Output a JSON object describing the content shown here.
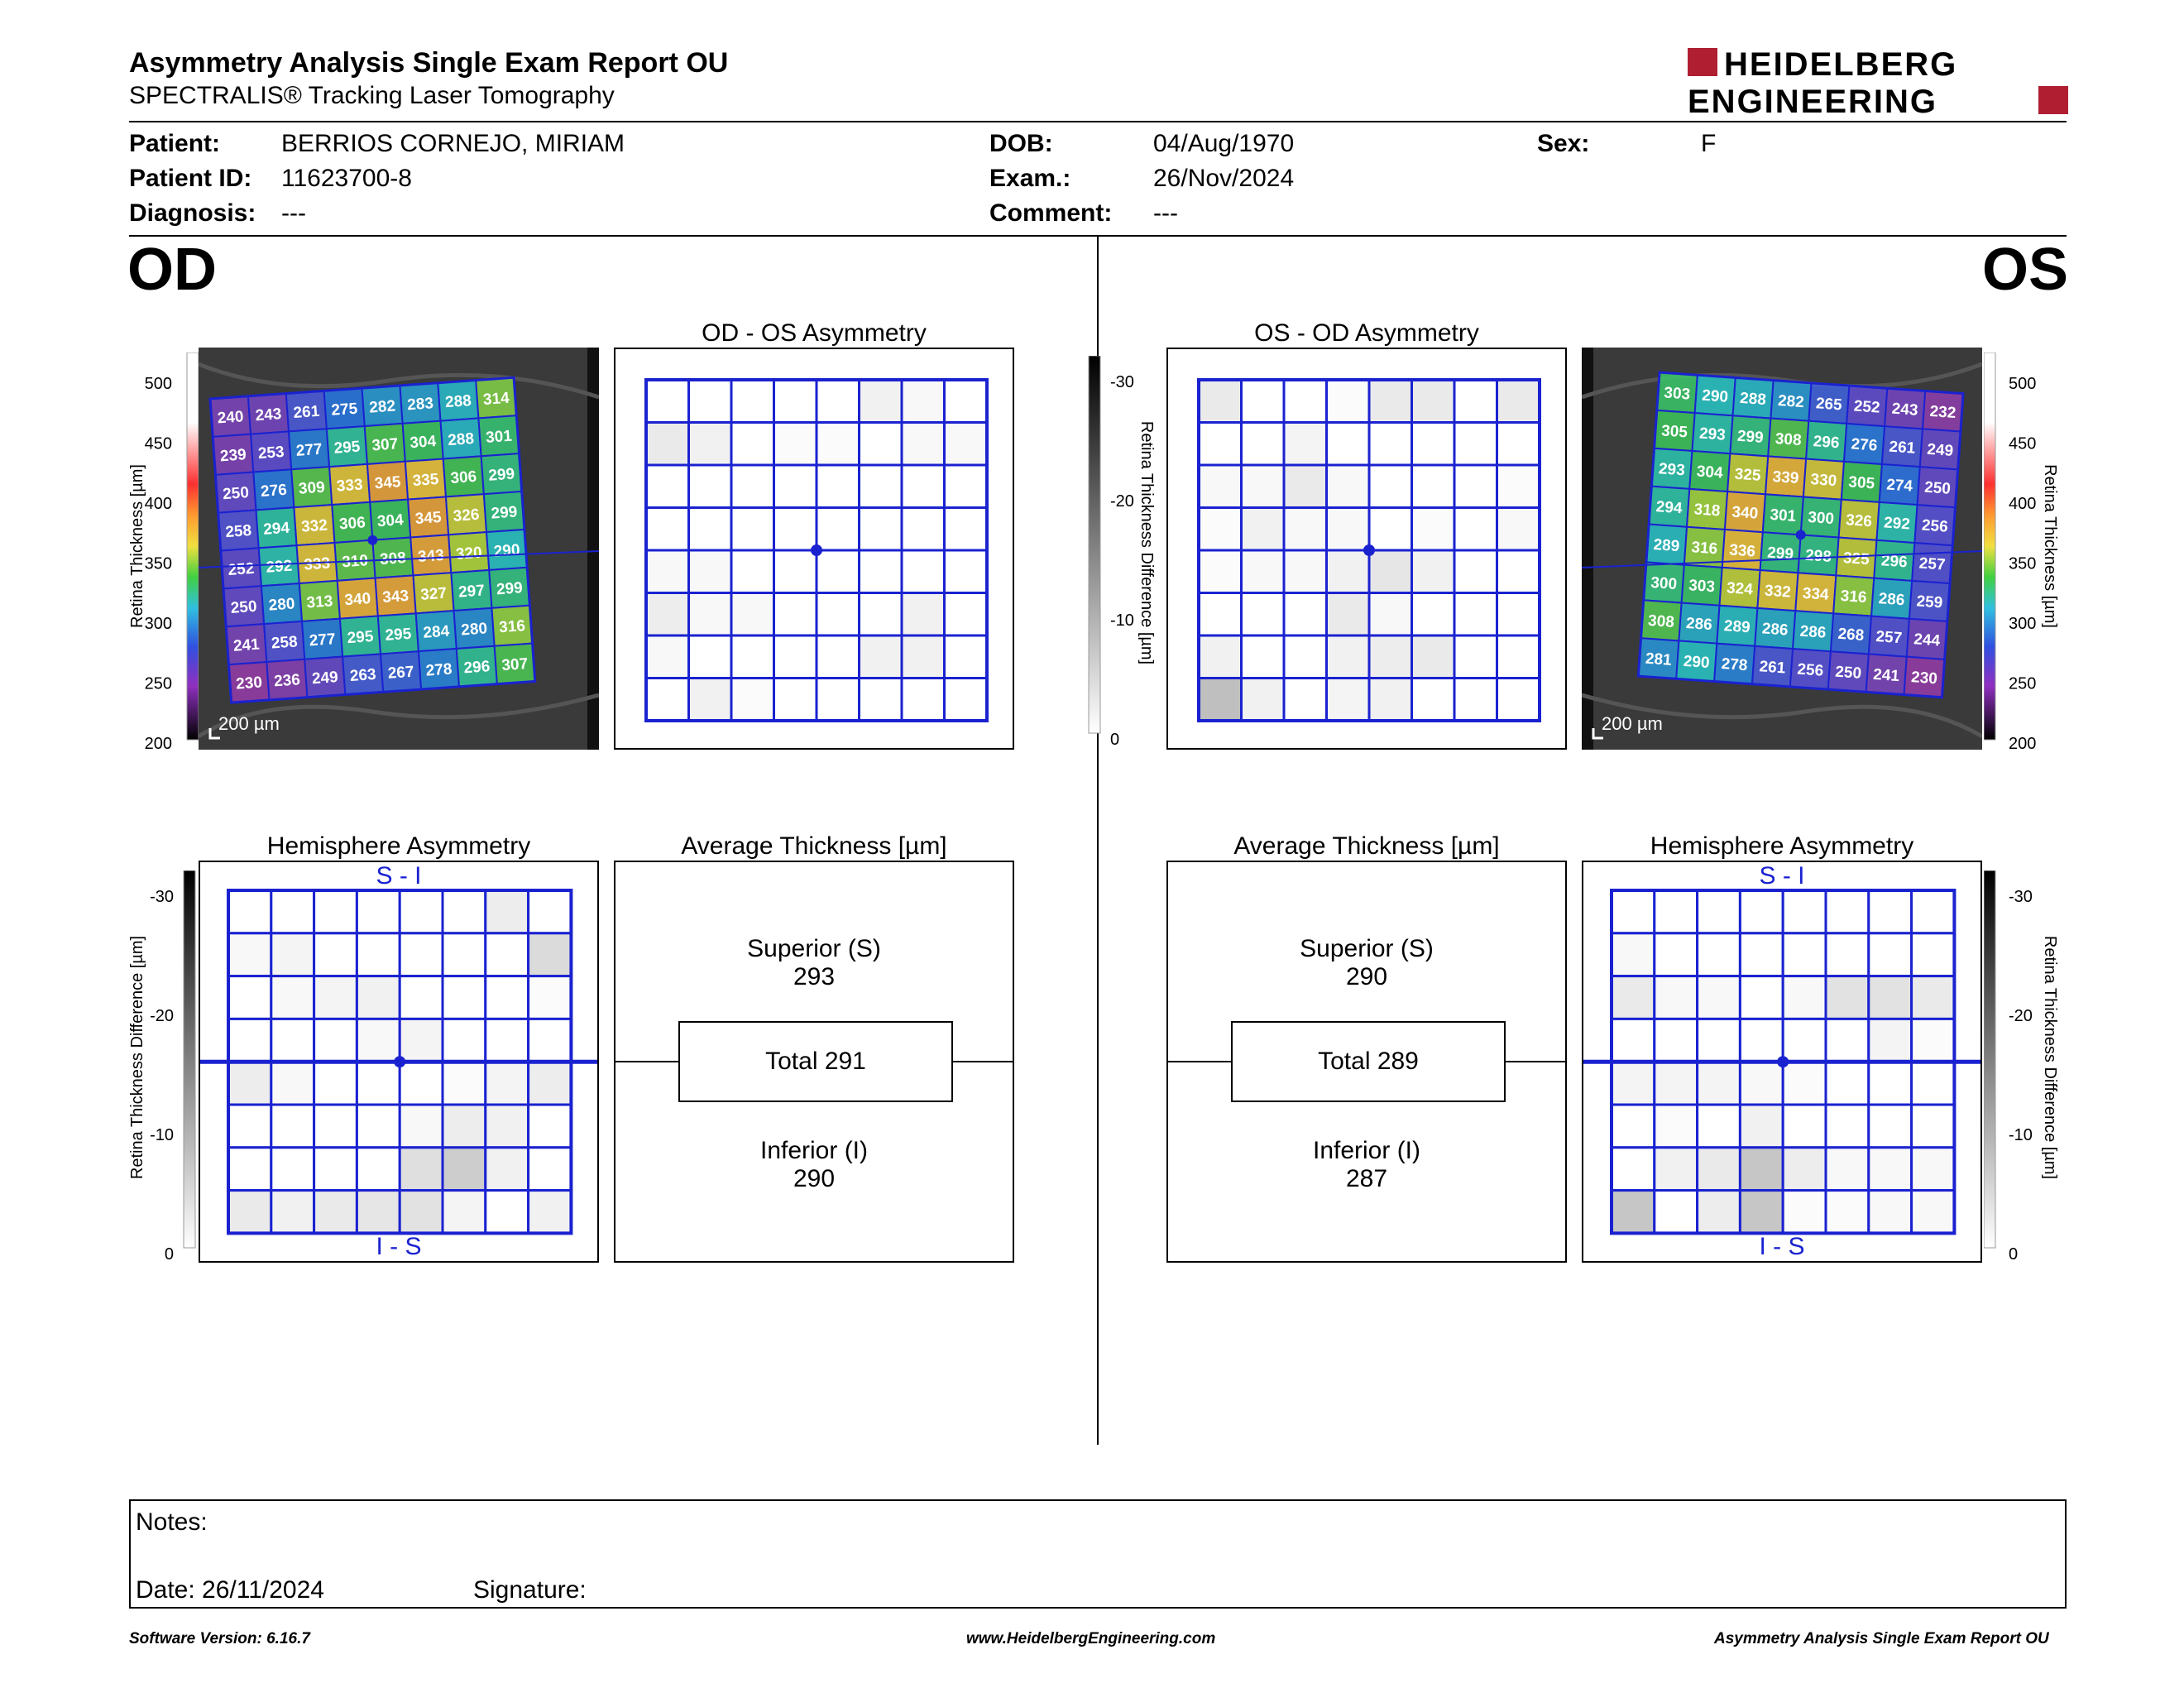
{
  "header": {
    "title": "Asymmetry Analysis Single Exam Report OU",
    "subtitle": "SPECTRALIS® Tracking Laser Tomography",
    "logo_line1": "HEIDELBERG",
    "logo_line2": "ENGINEERING"
  },
  "patient": {
    "patient_label": "Patient:",
    "patient_value": "BERRIOS CORNEJO, MIRIAM",
    "id_label": "Patient ID:",
    "id_value": "11623700-8",
    "diagnosis_label": "Diagnosis:",
    "diagnosis_value": "---",
    "dob_label": "DOB:",
    "dob_value": "04/Aug/1970",
    "exam_label": "Exam.:",
    "exam_value": "26/Nov/2024",
    "comment_label": "Comment:",
    "comment_value": "---",
    "sex_label": "Sex:",
    "sex_value": "F"
  },
  "od": {
    "eye_label": "OD",
    "asym_title": "OD - OS Asymmetry",
    "scale_bar": "200 µm",
    "thickness_axis_label": "Retina Thickness [µm]",
    "thickness_ticks": [
      "500",
      "450",
      "400",
      "350",
      "300",
      "250",
      "200"
    ],
    "grid": [
      [
        "240",
        "243",
        "261",
        "275",
        "282",
        "283",
        "288",
        "314"
      ],
      [
        "239",
        "253",
        "277",
        "295",
        "307",
        "304",
        "288",
        "301"
      ],
      [
        "250",
        "276",
        "309",
        "333",
        "345",
        "335",
        "306",
        "299"
      ],
      [
        "258",
        "294",
        "332",
        "306",
        "304",
        "345",
        "326",
        "299"
      ],
      [
        "252",
        "292",
        "333",
        "310",
        "308",
        "343",
        "320",
        "290"
      ],
      [
        "250",
        "280",
        "313",
        "340",
        "343",
        "327",
        "297",
        "299"
      ],
      [
        "241",
        "258",
        "277",
        "295",
        "295",
        "284",
        "280",
        "316"
      ],
      [
        "230",
        "236",
        "249",
        "263",
        "267",
        "278",
        "296",
        "307"
      ]
    ],
    "asym_grid": [
      [
        0,
        0,
        0,
        0,
        0,
        2,
        1,
        0
      ],
      [
        3,
        2,
        0,
        0.5,
        0.5,
        0,
        1,
        1
      ],
      [
        0,
        0,
        0,
        0,
        0,
        0,
        0,
        0
      ],
      [
        0,
        0,
        0,
        0,
        0,
        0,
        0,
        0
      ],
      [
        1,
        1,
        0,
        0,
        0,
        0,
        0,
        0
      ],
      [
        2.5,
        1,
        1,
        0,
        0,
        0,
        2,
        0
      ],
      [
        1,
        0,
        0,
        0,
        0,
        2,
        2,
        0
      ],
      [
        0,
        2,
        0.5,
        0,
        0,
        0,
        0,
        0
      ]
    ],
    "hemi_title": "Hemisphere Asymmetry",
    "hemi_top": "S - I",
    "hemi_bottom": "I - S",
    "hemi_grid": [
      [
        0,
        0,
        0,
        0,
        0,
        0,
        2.5,
        0
      ],
      [
        1,
        1.5,
        0,
        0,
        0,
        0,
        0,
        5
      ],
      [
        0,
        1,
        1.5,
        2,
        0,
        0,
        0,
        0.5
      ],
      [
        0,
        0,
        0,
        1,
        1.5,
        0,
        0,
        0
      ],
      [
        2.5,
        1,
        0,
        0,
        0,
        0.5,
        1.5,
        2.5
      ],
      [
        0,
        0,
        0,
        0,
        1,
        2.5,
        2,
        0
      ],
      [
        0,
        0,
        0,
        0,
        4.5,
        7,
        2,
        0
      ],
      [
        3,
        2,
        3,
        3.5,
        4,
        1.5,
        0,
        2
      ]
    ],
    "avg_title": "Average Thickness [µm]",
    "superior_label": "Superior (S)",
    "superior_value": "293",
    "total_label": "Total 291",
    "inferior_label": "Inferior (I)",
    "inferior_value": "290"
  },
  "os": {
    "eye_label": "OS",
    "asym_title": "OS - OD Asymmetry",
    "scale_bar": "200 µm",
    "thickness_axis_label": "Retina Thickness [µm]",
    "thickness_ticks": [
      "500",
      "450",
      "400",
      "350",
      "300",
      "250",
      "200"
    ],
    "grid": [
      [
        "303",
        "290",
        "288",
        "282",
        "265",
        "252",
        "243",
        "232"
      ],
      [
        "305",
        "293",
        "299",
        "308",
        "296",
        "276",
        "261",
        "249"
      ],
      [
        "293",
        "304",
        "325",
        "339",
        "330",
        "305",
        "274",
        "250"
      ],
      [
        "294",
        "318",
        "340",
        "301",
        "300",
        "326",
        "292",
        "256"
      ],
      [
        "289",
        "316",
        "336",
        "299",
        "298",
        "325",
        "296",
        "257"
      ],
      [
        "300",
        "303",
        "324",
        "332",
        "334",
        "316",
        "286",
        "259"
      ],
      [
        "308",
        "286",
        "289",
        "286",
        "286",
        "268",
        "257",
        "244"
      ],
      [
        "281",
        "290",
        "278",
        "261",
        "256",
        "250",
        "241",
        "230"
      ]
    ],
    "asym_grid": [
      [
        3,
        0,
        0,
        0.5,
        3,
        3,
        0,
        3
      ],
      [
        0,
        0,
        1.5,
        0,
        0,
        0,
        0,
        0
      ],
      [
        1,
        1,
        3,
        1,
        0,
        0,
        0,
        0.5
      ],
      [
        0.5,
        2,
        1,
        1,
        0,
        0.5,
        0,
        1
      ],
      [
        0.5,
        1,
        1,
        2,
        3.5,
        2,
        0,
        0
      ],
      [
        0,
        0,
        0,
        3,
        1,
        0,
        0,
        0
      ],
      [
        2,
        0,
        0,
        2,
        2.5,
        3,
        0,
        0
      ],
      [
        9,
        2,
        0,
        1.5,
        2,
        0,
        0,
        0
      ]
    ],
    "hemi_title": "Hemisphere Asymmetry",
    "hemi_top": "S - I",
    "hemi_bottom": "I - S",
    "hemi_grid": [
      [
        0,
        0,
        0,
        0,
        0,
        0,
        0,
        0
      ],
      [
        1,
        0,
        0,
        0,
        0,
        0,
        0,
        0
      ],
      [
        3,
        1,
        1,
        0,
        1,
        4,
        4,
        3
      ],
      [
        0,
        0,
        0,
        0,
        0,
        0,
        1.5,
        0.5
      ],
      [
        1.5,
        1.5,
        1.5,
        1,
        0.5,
        0,
        0,
        0
      ],
      [
        0,
        0.5,
        0,
        2,
        0,
        0,
        0,
        0
      ],
      [
        0,
        2,
        3,
        8,
        2.5,
        1,
        1,
        1
      ],
      [
        8,
        0,
        2.5,
        8,
        0.5,
        0.5,
        1,
        1
      ]
    ],
    "avg_title": "Average Thickness [µm]",
    "superior_label": "Superior (S)",
    "superior_value": "290",
    "total_label": "Total 289",
    "inferior_label": "Inferior (I)",
    "inferior_value": "287"
  },
  "diff_scale": {
    "axis_label": "Retina Thickness Difference [µm]",
    "ticks": [
      "-30",
      "-20",
      "-10",
      "0"
    ]
  },
  "notes": {
    "notes_label": "Notes:",
    "date_label": "Date: 26/11/2024",
    "signature_label": "Signature:"
  },
  "footer": {
    "software": "Software Version: 6.16.7",
    "website": "www.HeidelbergEngineering.com",
    "report": "Asymmetry Analysis Single Exam Report OU"
  },
  "colors": {
    "grid_blue": "#1a22d0",
    "logo_red": "#b01e32"
  }
}
